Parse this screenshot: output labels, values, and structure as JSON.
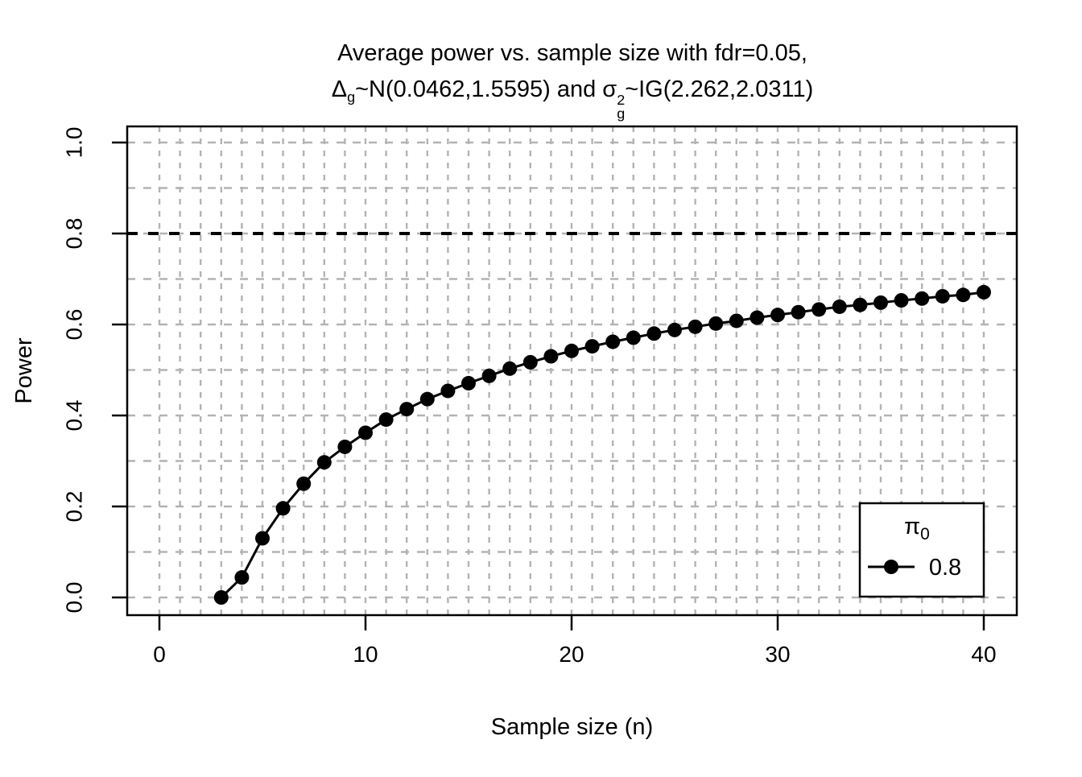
{
  "title": {
    "line1": "Average power vs. sample size with fdr=0.05,",
    "line2": {
      "delta": "Δ",
      "delta_sub": "g",
      "seg1": "~N(0.0462,1.5595) and ",
      "sigma": "σ",
      "sigma_sup": "2",
      "sigma_sub": "g",
      "seg2": "~IG(2.262,2.0311)"
    }
  },
  "axes": {
    "x": {
      "label": "Sample size (n)",
      "tick_labels": [
        "0",
        "10",
        "20",
        "30",
        "40"
      ],
      "tick_values": [
        0,
        10,
        20,
        30,
        40
      ]
    },
    "y": {
      "label": "Power",
      "tick_labels": [
        "0.0",
        "0.2",
        "0.4",
        "0.6",
        "0.8",
        "1.0"
      ],
      "tick_values": [
        0,
        0.2,
        0.4,
        0.6,
        0.8,
        1.0
      ]
    }
  },
  "legend": {
    "title": "π",
    "title_sub": "0",
    "entry_label": "0.8"
  },
  "colors": {
    "foreground": "#000000",
    "grid": "#b3b3b3",
    "background": "#ffffff"
  },
  "chart_data": {
    "type": "line",
    "title": "Average power vs. sample size with fdr=0.05, Δg~N(0.0462,1.5595) and σg²~IG(2.262,2.0311)",
    "xlabel": "Sample size (n)",
    "ylabel": "Power",
    "xlim": [
      0,
      40
    ],
    "ylim": [
      0,
      1
    ],
    "grid": {
      "style": "dashed",
      "x_step": 1,
      "y_step": 0.1,
      "x_range": [
        0,
        40
      ],
      "y_range": [
        0,
        1
      ]
    },
    "reference_line_y": 0.8,
    "legend": {
      "title": "π0",
      "entries": [
        "0.8"
      ],
      "position": "bottom-right"
    },
    "x": [
      3,
      4,
      5,
      6,
      7,
      8,
      9,
      10,
      11,
      12,
      13,
      14,
      15,
      16,
      17,
      18,
      19,
      20,
      21,
      22,
      23,
      24,
      25,
      26,
      27,
      28,
      29,
      30,
      31,
      32,
      33,
      34,
      35,
      36,
      37,
      38,
      39,
      40
    ],
    "series": [
      {
        "name": "0.8",
        "marker": "filled-circle",
        "values": [
          0.0,
          0.044,
          0.13,
          0.196,
          0.25,
          0.297,
          0.331,
          0.362,
          0.391,
          0.414,
          0.436,
          0.454,
          0.471,
          0.487,
          0.503,
          0.517,
          0.53,
          0.542,
          0.552,
          0.562,
          0.571,
          0.58,
          0.588,
          0.595,
          0.602,
          0.608,
          0.615,
          0.621,
          0.627,
          0.633,
          0.639,
          0.643,
          0.648,
          0.653,
          0.657,
          0.662,
          0.665,
          0.671
        ]
      }
    ]
  }
}
